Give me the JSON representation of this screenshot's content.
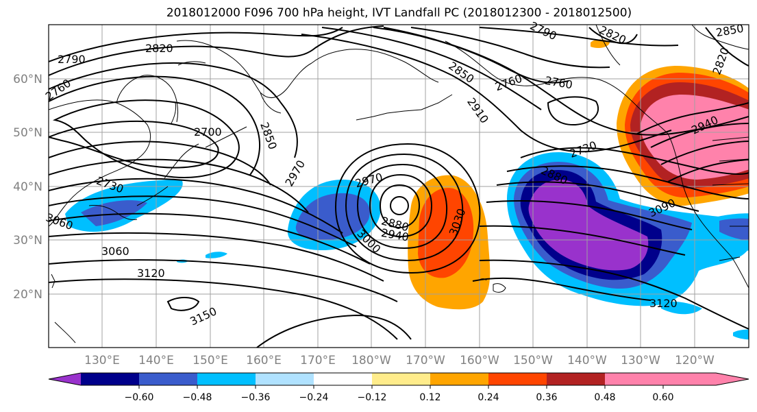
{
  "title": "2018012000 F096 700 hPa height, IVT Landfall PC (2018012300 - 2018012500)",
  "map": {
    "lat_labels": [
      "60°N",
      "50°N",
      "40°N",
      "30°N",
      "20°N"
    ],
    "lon_labels": [
      "130°E",
      "140°E",
      "150°E",
      "160°E",
      "170°E",
      "180°W",
      "170°W",
      "160°W",
      "150°W",
      "140°W",
      "130°W",
      "120°W"
    ],
    "gridline_color": "#a0a0a0",
    "coastline_color": "#000000",
    "contour_color": "#000000",
    "contour_labels": [
      "2820",
      "2790",
      "2760",
      "2790",
      "2820",
      "2850",
      "2760",
      "2760",
      "2910",
      "2700",
      "2850",
      "2970",
      "2730",
      "2940",
      "2730",
      "2970",
      "2880",
      "3030",
      "3090",
      "3060",
      "2880",
      "2940",
      "3000",
      "3060",
      "3120",
      "3150",
      "3120",
      "2820",
      "2850"
    ]
  },
  "colorbar": {
    "ticks": [
      "−0.60",
      "−0.48",
      "−0.36",
      "−0.24",
      "−0.12",
      "0.12",
      "0.24",
      "0.36",
      "0.48",
      "0.60"
    ],
    "colors": [
      "#9932CC",
      "#00008B",
      "#3A5CCC",
      "#00BFFF",
      "#B0E2FF",
      "#FFFFFF",
      "#FFEC8B",
      "#FFA500",
      "#FF4500",
      "#B22222",
      "#FF82AB"
    ]
  }
}
